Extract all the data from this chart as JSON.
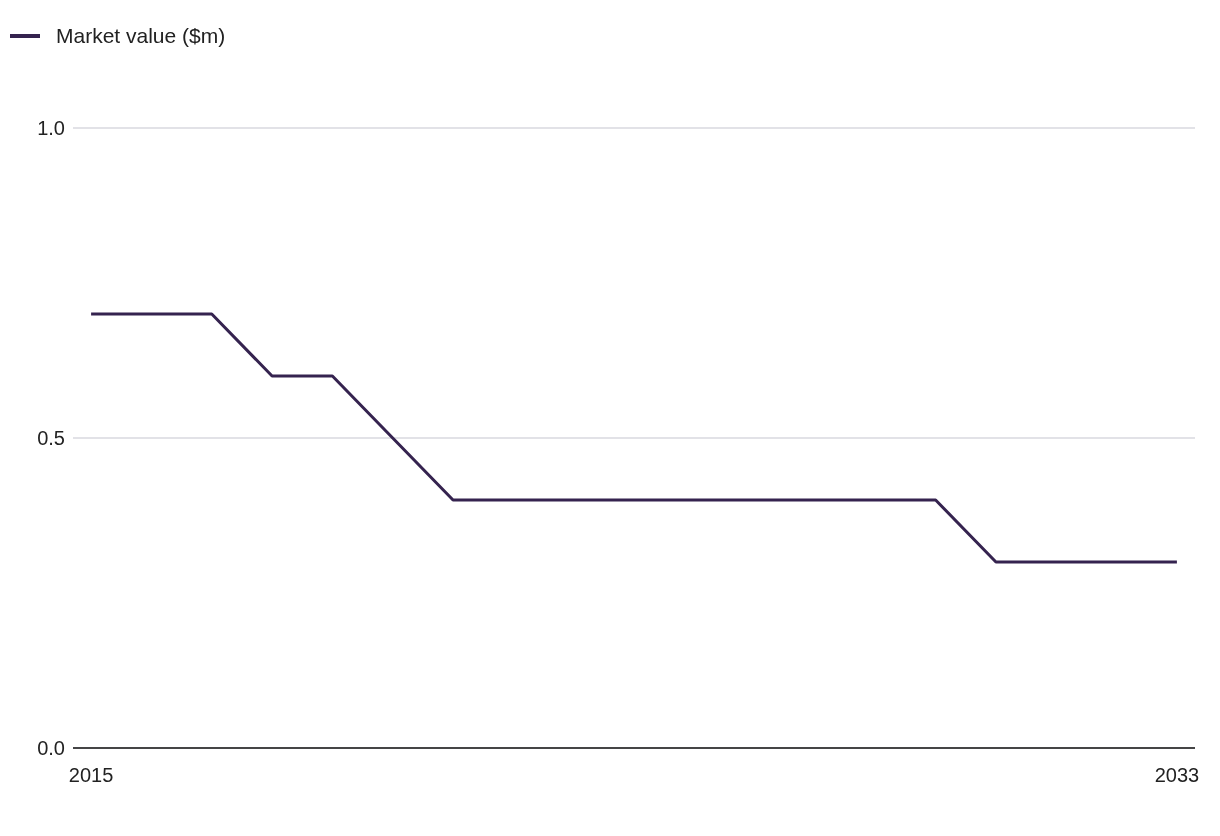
{
  "chart_data": {
    "type": "line",
    "x": [
      2015,
      2016,
      2017,
      2018,
      2019,
      2020,
      2021,
      2022,
      2023,
      2024,
      2025,
      2026,
      2027,
      2028,
      2029,
      2030,
      2031,
      2032,
      2033
    ],
    "series": [
      {
        "name": "Market value ($m)",
        "color": "#35234f",
        "values": [
          0.7,
          0.7,
          0.7,
          0.6,
          0.6,
          0.5,
          0.4,
          0.4,
          0.4,
          0.4,
          0.4,
          0.4,
          0.4,
          0.4,
          0.4,
          0.3,
          0.3,
          0.3,
          0.3
        ]
      }
    ],
    "xlim": [
      2014.7,
      2033.3
    ],
    "xticks": [
      2015,
      2033
    ],
    "ylim": [
      0,
      1
    ],
    "yticks": [
      {
        "value": 0,
        "label": "0.0"
      },
      {
        "value": 0.5,
        "label": "0.5"
      },
      {
        "value": 1,
        "label": "1.0"
      }
    ],
    "grid": "y",
    "legend": "top left",
    "marker": "none",
    "line_style": "solid"
  }
}
